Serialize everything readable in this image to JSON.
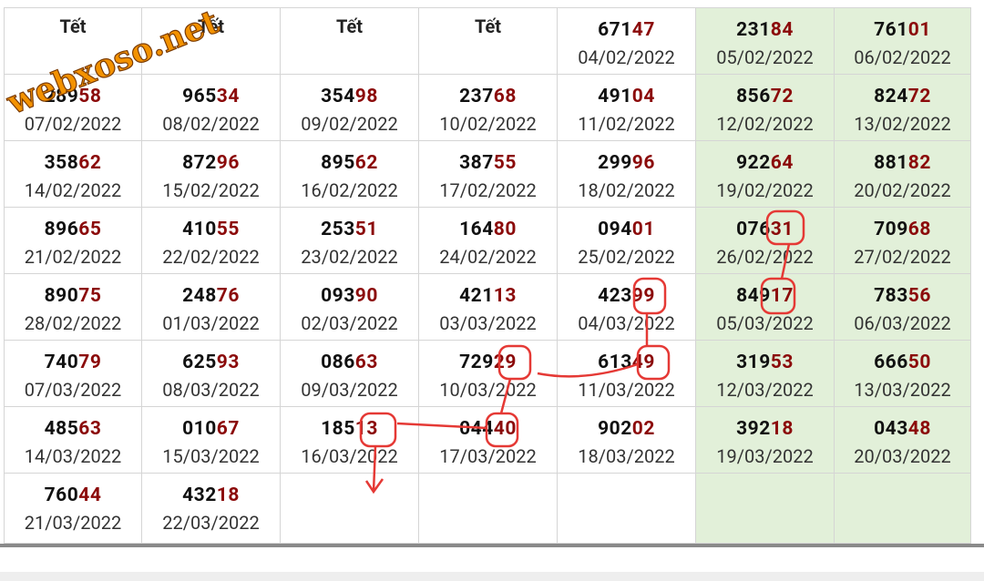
{
  "watermark": "webxoso.net",
  "table": {
    "rows": [
      [
        {
          "text": "Tết"
        },
        {
          "text": "Tết"
        },
        {
          "text": "Tết"
        },
        {
          "text": "Tết"
        },
        {
          "head": "671",
          "tail": "47",
          "date": "04/02/2022"
        },
        {
          "head": "231",
          "tail": "84",
          "date": "05/02/2022"
        },
        {
          "head": "761",
          "tail": "01",
          "date": "06/02/2022"
        }
      ],
      [
        {
          "head": "289",
          "tail": "58",
          "date": "07/02/2022"
        },
        {
          "head": "965",
          "tail": "34",
          "date": "08/02/2022"
        },
        {
          "head": "354",
          "tail": "98",
          "date": "09/02/2022"
        },
        {
          "head": "237",
          "tail": "68",
          "date": "10/02/2022"
        },
        {
          "head": "491",
          "tail": "04",
          "date": "11/02/2022"
        },
        {
          "head": "856",
          "tail": "72",
          "date": "12/02/2022"
        },
        {
          "head": "824",
          "tail": "72",
          "date": "13/02/2022"
        }
      ],
      [
        {
          "head": "358",
          "tail": "62",
          "date": "14/02/2022"
        },
        {
          "head": "872",
          "tail": "96",
          "date": "15/02/2022"
        },
        {
          "head": "895",
          "tail": "62",
          "date": "16/02/2022"
        },
        {
          "head": "387",
          "tail": "55",
          "date": "17/02/2022"
        },
        {
          "head": "299",
          "tail": "96",
          "date": "18/02/2022"
        },
        {
          "head": "922",
          "tail": "64",
          "date": "19/02/2022"
        },
        {
          "head": "881",
          "tail": "82",
          "date": "20/02/2022"
        }
      ],
      [
        {
          "head": "896",
          "tail": "65",
          "date": "21/02/2022"
        },
        {
          "head": "410",
          "tail": "55",
          "date": "22/02/2022"
        },
        {
          "head": "253",
          "tail": "51",
          "date": "23/02/2022"
        },
        {
          "head": "164",
          "tail": "80",
          "date": "24/02/2022"
        },
        {
          "head": "094",
          "tail": "01",
          "date": "25/02/2022"
        },
        {
          "head": "076",
          "tail": "31",
          "date": "26/02/2022"
        },
        {
          "head": "709",
          "tail": "68",
          "date": "27/02/2022"
        }
      ],
      [
        {
          "head": "890",
          "tail": "75",
          "date": "28/02/2022"
        },
        {
          "head": "248",
          "tail": "76",
          "date": "01/03/2022"
        },
        {
          "head": "093",
          "tail": "90",
          "date": "02/03/2022"
        },
        {
          "head": "421",
          "tail": "13",
          "date": "03/03/2022"
        },
        {
          "head": "423",
          "tail": "99",
          "date": "04/03/2022"
        },
        {
          "head": "849",
          "tail": "17",
          "date": "05/03/2022"
        },
        {
          "head": "783",
          "tail": "56",
          "date": "06/03/2022"
        }
      ],
      [
        {
          "head": "740",
          "tail": "79",
          "date": "07/03/2022"
        },
        {
          "head": "625",
          "tail": "93",
          "date": "08/03/2022"
        },
        {
          "head": "086",
          "tail": "63",
          "date": "09/03/2022"
        },
        {
          "head": "729",
          "tail": "29",
          "date": "10/03/2022"
        },
        {
          "head": "613",
          "tail": "49",
          "date": "11/03/2022"
        },
        {
          "head": "319",
          "tail": "53",
          "date": "12/03/2022"
        },
        {
          "head": "666",
          "tail": "50",
          "date": "13/03/2022"
        }
      ],
      [
        {
          "head": "485",
          "tail": "63",
          "date": "14/03/2022"
        },
        {
          "head": "010",
          "tail": "67",
          "date": "15/03/2022"
        },
        {
          "head": "185",
          "tail": "13",
          "date": "16/03/2022"
        },
        {
          "head": "044",
          "tail": "40",
          "date": "17/03/2022"
        },
        {
          "head": "902",
          "tail": "02",
          "date": "18/03/2022"
        },
        {
          "head": "392",
          "tail": "18",
          "date": "19/03/2022"
        },
        {
          "head": "043",
          "tail": "48",
          "date": "20/03/2022"
        }
      ],
      [
        {
          "head": "760",
          "tail": "44",
          "date": "21/03/2022"
        },
        {
          "head": "432",
          "tail": "18",
          "date": "22/03/2022"
        }
      ]
    ]
  }
}
